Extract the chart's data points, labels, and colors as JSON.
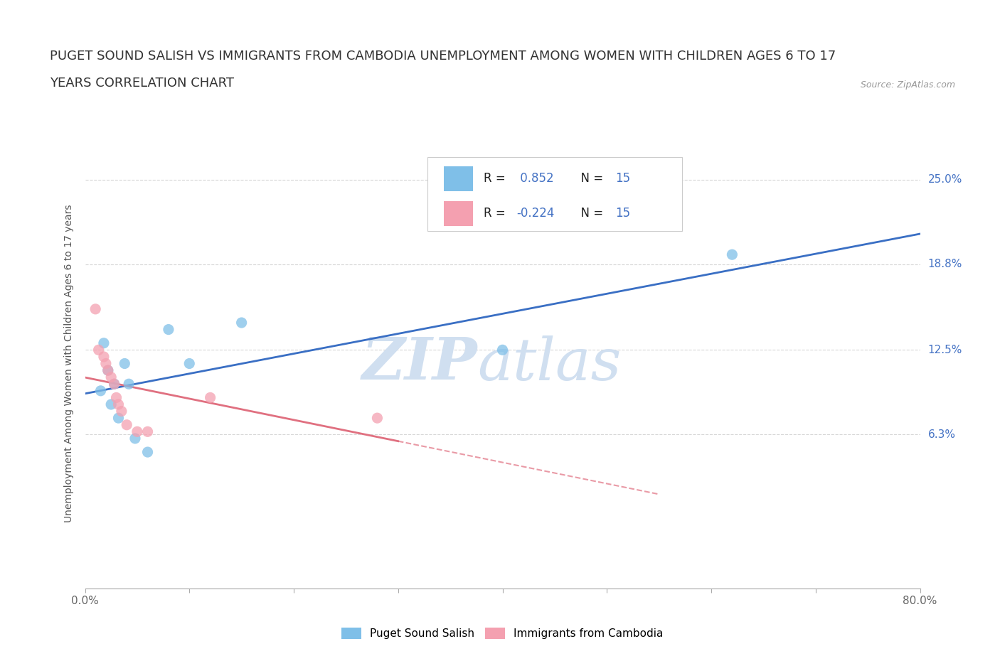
{
  "title_line1": "PUGET SOUND SALISH VS IMMIGRANTS FROM CAMBODIA UNEMPLOYMENT AMONG WOMEN WITH CHILDREN AGES 6 TO 17",
  "title_line2": "YEARS CORRELATION CHART",
  "source": "Source: ZipAtlas.com",
  "ylabel": "Unemployment Among Women with Children Ages 6 to 17 years",
  "xlim": [
    0.0,
    0.8
  ],
  "ylim": [
    -0.05,
    0.28
  ],
  "xticks": [
    0.0,
    0.1,
    0.2,
    0.3,
    0.4,
    0.5,
    0.6,
    0.7,
    0.8
  ],
  "xticklabels": [
    "0.0%",
    "",
    "",
    "",
    "",
    "",
    "",
    "",
    "80.0%"
  ],
  "yticks_right": [
    0.063,
    0.125,
    0.188,
    0.25
  ],
  "yticks_right_labels": [
    "6.3%",
    "12.5%",
    "18.8%",
    "25.0%"
  ],
  "series1_name": "Puget Sound Salish",
  "series1_color": "#7fbfe8",
  "series1_line_color": "#3a6fc4",
  "series1_R": 0.852,
  "series1_N": 15,
  "series1_x": [
    0.015,
    0.018,
    0.022,
    0.025,
    0.028,
    0.032,
    0.038,
    0.042,
    0.048,
    0.06,
    0.08,
    0.1,
    0.15,
    0.4,
    0.62
  ],
  "series1_y": [
    0.095,
    0.13,
    0.11,
    0.085,
    0.1,
    0.075,
    0.115,
    0.1,
    0.06,
    0.05,
    0.14,
    0.115,
    0.145,
    0.125,
    0.195
  ],
  "series2_name": "Immigrants from Cambodia",
  "series2_color": "#f4a0b0",
  "series2_line_color": "#e07080",
  "series2_R": -0.224,
  "series2_N": 15,
  "series2_x": [
    0.01,
    0.013,
    0.018,
    0.02,
    0.022,
    0.025,
    0.028,
    0.03,
    0.032,
    0.035,
    0.04,
    0.05,
    0.06,
    0.12,
    0.28
  ],
  "series2_y": [
    0.155,
    0.125,
    0.12,
    0.115,
    0.11,
    0.105,
    0.1,
    0.09,
    0.085,
    0.08,
    0.07,
    0.065,
    0.065,
    0.09,
    0.075
  ],
  "watermark_zip": "ZIP",
  "watermark_atlas": "atlas",
  "background_color": "#ffffff",
  "grid_color": "#cccccc",
  "title_fontsize": 13,
  "axis_label_fontsize": 10,
  "tick_fontsize": 11,
  "legend_color": "#4472c4"
}
